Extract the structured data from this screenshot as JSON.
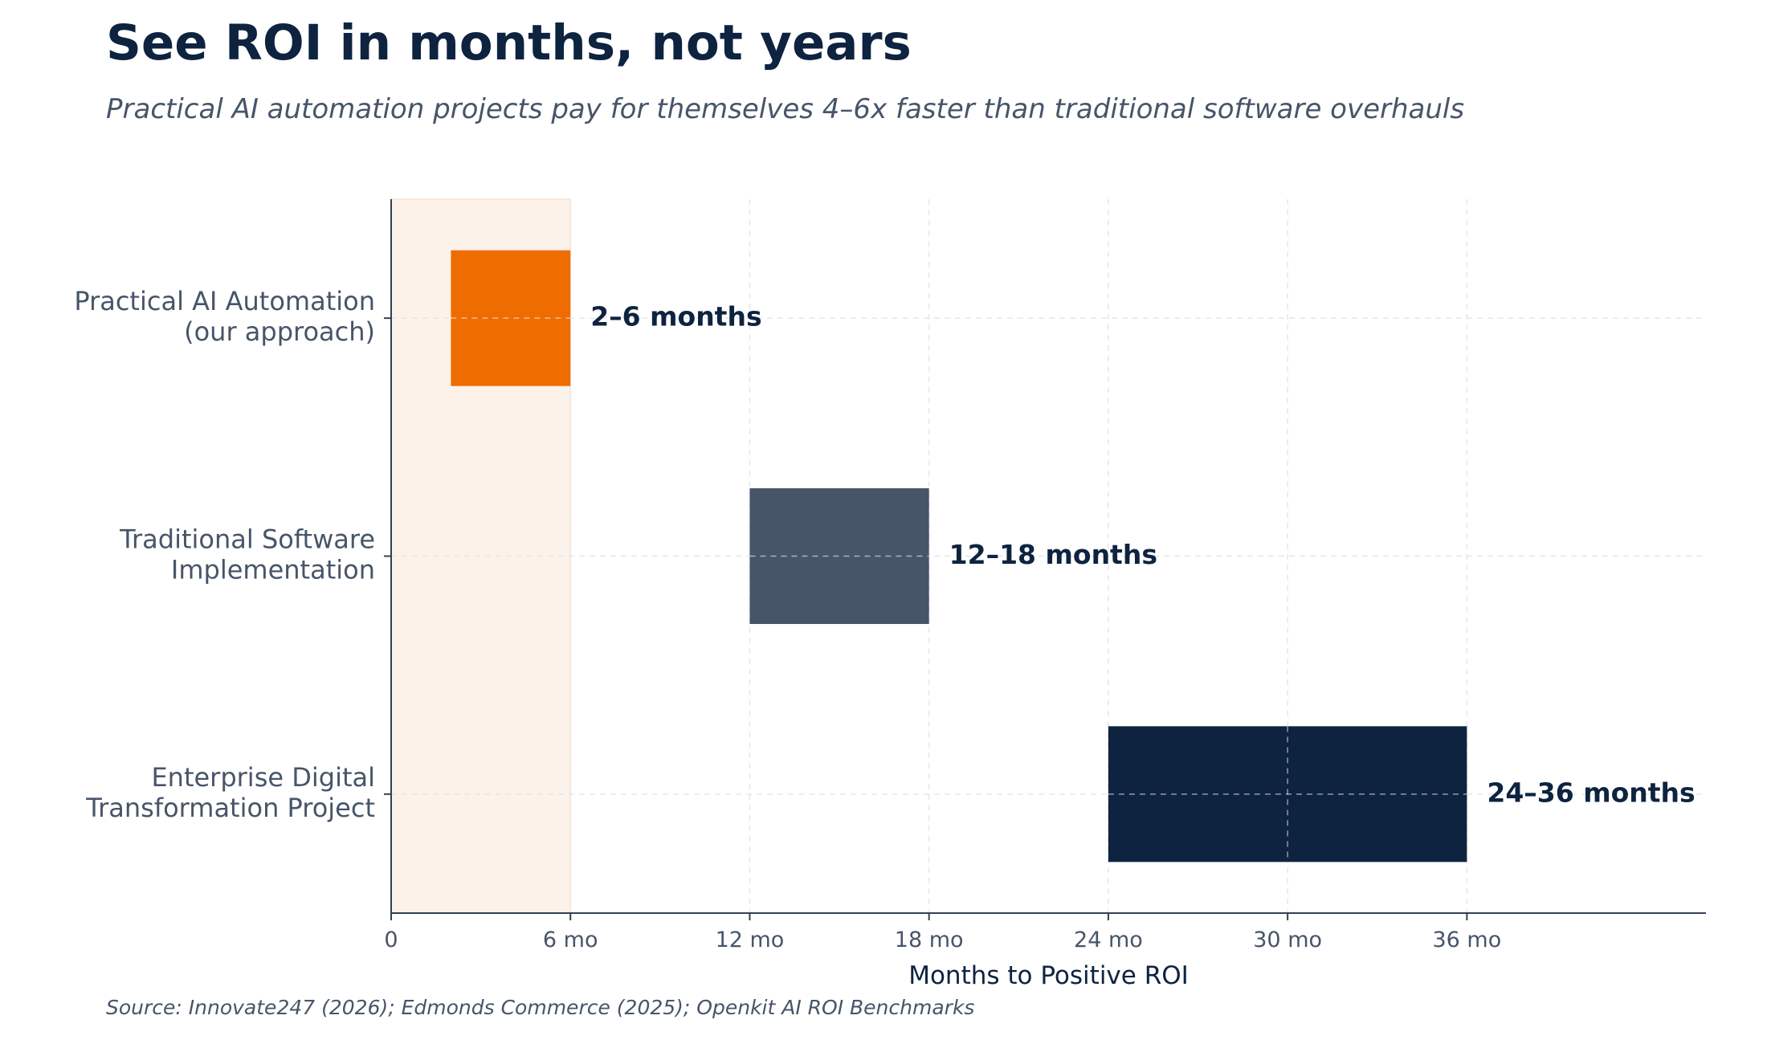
{
  "title": "See ROI in months, not years",
  "subtitle": "Practical AI automation projects pay for themselves 4–6x faster than traditional software overhauls",
  "source": "Source: Innovate247 (2026); Edmonds Commerce (2025); Openkit AI ROI Benchmarks",
  "chart_data": {
    "type": "bar",
    "orientation": "horizontal-range",
    "xlabel": "Months to Positive ROI",
    "xlim": [
      0,
      44
    ],
    "xticks": [
      0,
      6,
      12,
      18,
      24,
      30,
      36
    ],
    "xtick_labels": [
      "0",
      "6 mo",
      "12 mo",
      "18 mo",
      "24 mo",
      "30 mo",
      "36 mo"
    ],
    "grid": true,
    "highlight_band": [
      0,
      6
    ],
    "highlight_color": "#fdf2e9",
    "categories": [
      [
        "Practical AI Automation",
        "(our approach)"
      ],
      [
        "Traditional Software",
        "Implementation"
      ],
      [
        "Enterprise Digital",
        "Transformation Project"
      ]
    ],
    "ranges": [
      [
        2,
        6
      ],
      [
        12,
        18
      ],
      [
        24,
        36
      ]
    ],
    "labels": [
      "2–6 months",
      "12–18 months",
      "24–36 months"
    ],
    "colors": [
      "#ef6c00",
      "#475569",
      "#0d2340"
    ]
  }
}
